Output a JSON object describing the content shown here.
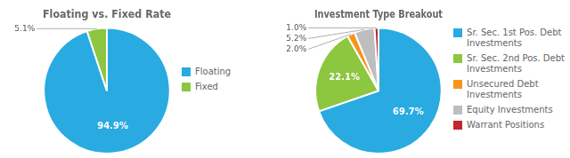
{
  "chart_data": [
    {
      "type": "pie",
      "title": "Floating vs. Fixed Rate",
      "categories": [
        "Floating",
        "Fixed"
      ],
      "values": [
        94.9,
        5.1
      ],
      "value_labels": [
        "94.9%",
        "5.1%"
      ],
      "data_labels": true,
      "colors": [
        "#29ABE2",
        "#8DC63F"
      ],
      "legend": "right"
    },
    {
      "type": "pie",
      "title": "Investment Type Breakout",
      "categories": [
        "Sr. Sec. 1st Pos. Debt\nInvestments",
        "Sr. Sec. 2nd Pos. Debt\nInvestments",
        "Unsecured Debt\nInvestments",
        "Equity Investments",
        "Warrant Positions"
      ],
      "values": [
        69.7,
        22.1,
        2.0,
        5.2,
        1.0
      ],
      "value_labels": [
        "69.7%",
        "22.1%",
        "2.0%",
        "5.2%",
        "1.0%"
      ],
      "data_labels": true,
      "colors": [
        "#29ABE2",
        "#8DC63F",
        "#F7941D",
        "#BCBEC0",
        "#C1272D"
      ],
      "legend": "right"
    }
  ]
}
